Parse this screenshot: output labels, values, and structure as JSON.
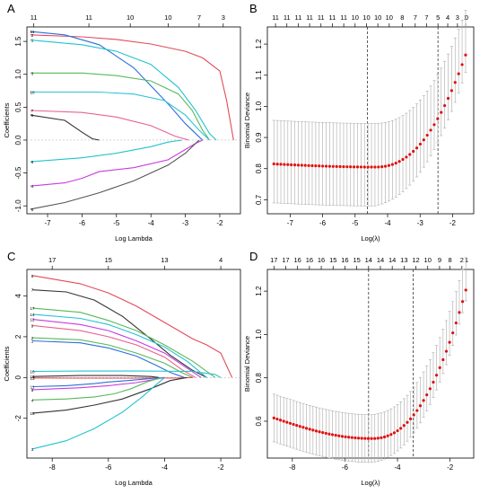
{
  "panels": [
    {
      "letter": "A",
      "type": "line",
      "xlabel": "Log Lambda",
      "ylabel": "Coefficients",
      "xlim": [
        -7.6,
        -1.4
      ],
      "ylim": [
        -1.12,
        1.72
      ],
      "xticks": [
        -7,
        -6,
        -5,
        -4,
        -3,
        -2
      ],
      "xtick_labels": [
        "-7",
        "-6",
        "-5",
        "-4",
        "-3",
        "-2"
      ],
      "yticks": [
        -1.0,
        -0.5,
        0.0,
        0.5,
        1.0,
        1.5
      ],
      "ytick_labels": [
        "-1.0",
        "-0.5",
        "0.0",
        "0.5",
        "1.0",
        "1.5"
      ],
      "top_ticks": [
        -7.4,
        -5.8,
        -4.6,
        -3.5,
        -2.6,
        -1.9
      ],
      "top_labels": [
        "11",
        "11",
        "10",
        "10",
        "7",
        "3"
      ],
      "series": [
        {
          "color": "#e34a5a",
          "x": [
            -7.5,
            -6,
            -5,
            -4,
            -3,
            -2.5,
            -2,
            -1.8,
            -1.6
          ],
          "y": [
            1.6,
            1.57,
            1.53,
            1.46,
            1.35,
            1.25,
            1.05,
            0.6,
            0
          ],
          "label": "2"
        },
        {
          "color": "#2a6fd6",
          "x": [
            -7.5,
            -6.5,
            -5.5,
            -4.5,
            -3.5,
            -3,
            -2.6,
            -2.5
          ],
          "y": [
            1.65,
            1.6,
            1.45,
            1.1,
            0.55,
            0.25,
            0.05,
            0
          ],
          "label": "11"
        },
        {
          "color": "#22c3cf",
          "x": [
            -7.5,
            -6,
            -5,
            -4,
            -3.2,
            -2.7,
            -2.3,
            -2.1
          ],
          "y": [
            1.52,
            1.45,
            1.35,
            1.15,
            0.8,
            0.45,
            0.1,
            0
          ],
          "label": "1"
        },
        {
          "color": "#58b85a",
          "x": [
            -7.5,
            -6,
            -5,
            -4,
            -3.2,
            -2.8,
            -2.5,
            -2.3
          ],
          "y": [
            1.02,
            1.02,
            0.98,
            0.9,
            0.7,
            0.45,
            0.15,
            0
          ],
          "label": "3"
        },
        {
          "color": "#30c5d4",
          "x": [
            -7.5,
            -5.5,
            -4.5,
            -3.6,
            -3,
            -2.6,
            -2.3
          ],
          "y": [
            0.73,
            0.73,
            0.7,
            0.6,
            0.38,
            0.15,
            0
          ],
          "label": "10"
        },
        {
          "color": "#e96090",
          "x": [
            -7.5,
            -6,
            -5,
            -4,
            -3.3,
            -2.9
          ],
          "y": [
            0.45,
            0.42,
            0.35,
            0.22,
            0.06,
            0
          ],
          "label": "7"
        },
        {
          "color": "#333333",
          "x": [
            -7.5,
            -6.5,
            -6,
            -5.7,
            -5.5
          ],
          "y": [
            0.38,
            0.3,
            0.12,
            0.02,
            0
          ],
          "label": "5"
        },
        {
          "color": "#c83be0",
          "x": [
            -7.5,
            -6.5,
            -6,
            -5.5,
            -4.5,
            -3.5,
            -2.7,
            -2.5
          ],
          "y": [
            -0.7,
            -0.65,
            -0.58,
            -0.48,
            -0.42,
            -0.3,
            -0.05,
            0
          ],
          "label": "4"
        },
        {
          "color": "#22c3cf",
          "x": [
            -7.5,
            -6,
            -5,
            -4,
            -3.5,
            -3.1
          ],
          "y": [
            -0.33,
            -0.27,
            -0.2,
            -0.1,
            -0.03,
            0
          ],
          "label": "8"
        },
        {
          "color": "#555555",
          "x": [
            -7.5,
            -6.5,
            -5.5,
            -4.5,
            -3.5,
            -3,
            -2.6
          ],
          "y": [
            -1.05,
            -0.95,
            -0.8,
            -0.62,
            -0.38,
            -0.2,
            0
          ],
          "label": "6"
        }
      ]
    },
    {
      "letter": "B",
      "type": "scatter",
      "xlabel": "Log(λ)",
      "ylabel": "Binomial Deviance",
      "xlim": [
        -7.7,
        -1.35
      ],
      "ylim": [
        0.655,
        1.255
      ],
      "xticks": [
        -7,
        -6,
        -5,
        -4,
        -3,
        -2
      ],
      "xtick_labels": [
        "-7",
        "-6",
        "-5",
        "-4",
        "-3",
        "-2"
      ],
      "yticks": [
        0.7,
        0.8,
        0.9,
        1.0,
        1.1,
        1.2
      ],
      "ytick_labels": [
        "0.7",
        "0.8",
        "0.9",
        "1.0",
        "1.1",
        "1.2"
      ],
      "top_ticks": [
        -7.45,
        -7.1,
        -6.75,
        -6.4,
        -6.05,
        -5.7,
        -5.35,
        -5.0,
        -4.65,
        -4.3,
        -3.95,
        -3.55,
        -3.15,
        -2.8,
        -2.45,
        -2.15,
        -1.85,
        -1.6
      ],
      "top_labels": [
        "11",
        "11",
        "11",
        "11",
        "11",
        "11",
        "11",
        "10",
        "10",
        "10",
        "10",
        "8",
        "7",
        "7",
        "5",
        "4",
        "3",
        "1"
      ],
      "extra_top_label": "0",
      "vlines": [
        -4.62,
        -2.45
      ],
      "n_points": 56,
      "x_start": -7.5,
      "x_end": -1.6,
      "base": 0.815,
      "min": 0.805,
      "min_at": -4.4,
      "rise_to": 1.165,
      "band_lo": 0.69,
      "band_hi": 0.955,
      "err_growth": 0.08
    },
    {
      "letter": "C",
      "type": "line",
      "xlabel": "Log Lambda",
      "ylabel": "Coefficients",
      "xlim": [
        -8.9,
        -1.3
      ],
      "ylim": [
        -3.95,
        5.3
      ],
      "xticks": [
        -8,
        -6,
        -4,
        -2
      ],
      "xtick_labels": [
        "-8",
        "-6",
        "-4",
        "-2"
      ],
      "yticks": [
        -2,
        0,
        2,
        4
      ],
      "ytick_labels": [
        "-2",
        "0",
        "2",
        "4"
      ],
      "top_ticks": [
        -8,
        -6,
        -4,
        -2
      ],
      "top_labels": [
        "17",
        "15",
        "13",
        "4"
      ],
      "series": [
        {
          "color": "#e34a5a",
          "x": [
            -8.7,
            -7,
            -6,
            -5,
            -4,
            -3,
            -2.5,
            -2,
            -1.6
          ],
          "y": [
            5.0,
            4.6,
            4.15,
            3.5,
            2.7,
            1.9,
            1.6,
            1.2,
            0
          ],
          "label": "8"
        },
        {
          "color": "#333333",
          "x": [
            -8.7,
            -7.5,
            -6.5,
            -5.5,
            -4.5,
            -3.8,
            -3,
            -2.5
          ],
          "y": [
            4.3,
            4.2,
            3.8,
            3.0,
            1.9,
            1.1,
            0.35,
            0
          ],
          "label": "7"
        },
        {
          "color": "#58b85a",
          "x": [
            -8.7,
            -7,
            -6,
            -5,
            -4,
            -3,
            -2.2
          ],
          "y": [
            3.4,
            3.2,
            2.8,
            2.3,
            1.6,
            0.8,
            0
          ],
          "label": "17"
        },
        {
          "color": "#22c3cf",
          "x": [
            -8.7,
            -7,
            -6,
            -5,
            -4,
            -3.2,
            -2.5
          ],
          "y": [
            3.1,
            2.9,
            2.6,
            2.1,
            1.5,
            0.8,
            0
          ],
          "label": "14"
        },
        {
          "color": "#c83be0",
          "x": [
            -8.7,
            -7,
            -6,
            -5,
            -4,
            -3.3,
            -2.7
          ],
          "y": [
            2.85,
            2.6,
            2.3,
            1.8,
            1.2,
            0.55,
            0
          ],
          "label": "12"
        },
        {
          "color": "#e96090",
          "x": [
            -8.7,
            -7,
            -6,
            -5,
            -4,
            -3.4,
            -2.9
          ],
          "y": [
            2.55,
            2.3,
            2.0,
            1.6,
            1.0,
            0.4,
            0
          ],
          "label": "9"
        },
        {
          "color": "#58b85a",
          "x": [
            -8.7,
            -7,
            -6,
            -5,
            -4,
            -3.4,
            -3
          ],
          "y": [
            1.95,
            1.85,
            1.6,
            1.2,
            0.7,
            0.25,
            0
          ],
          "label": "2"
        },
        {
          "color": "#2a6fd6",
          "x": [
            -8.7,
            -7,
            -6,
            -5,
            -4.3,
            -3.8,
            -3.3
          ],
          "y": [
            1.8,
            1.7,
            1.45,
            1.05,
            0.6,
            0.25,
            0
          ],
          "label": "1"
        },
        {
          "color": "#22c3cf",
          "x": [
            -8.7,
            -7,
            -5,
            -3,
            -2.2,
            -2
          ],
          "y": [
            0.3,
            0.32,
            0.32,
            0.3,
            0.15,
            0
          ],
          "label": "10"
        },
        {
          "color": "#e34a5a",
          "x": [
            -8.7,
            -7,
            -5,
            -3.5,
            -3
          ],
          "y": [
            -0.02,
            -0.03,
            -0.03,
            -0.02,
            0
          ],
          "label": "13"
        },
        {
          "color": "#333333",
          "x": [
            -8.7,
            -7,
            -5.5,
            -4.5,
            -4.2
          ],
          "y": [
            0.05,
            0.1,
            0.1,
            0.05,
            0
          ],
          "label": "16"
        },
        {
          "color": "#2a6fd6",
          "x": [
            -8.7,
            -7.5,
            -6.5,
            -6,
            -5.3,
            -4.5,
            -4
          ],
          "y": [
            -0.45,
            -0.4,
            -0.3,
            -0.22,
            -0.15,
            -0.05,
            0
          ],
          "label": "11"
        },
        {
          "color": "#c83be0",
          "x": [
            -8.7,
            -7,
            -6,
            -5,
            -4.3,
            -4
          ],
          "y": [
            -0.6,
            -0.5,
            -0.4,
            -0.25,
            -0.08,
            0
          ],
          "label": "6"
        },
        {
          "color": "#58b85a",
          "x": [
            -8.7,
            -7.5,
            -6.5,
            -5.8,
            -5.2,
            -4.6,
            -4.1
          ],
          "y": [
            -1.1,
            -1.05,
            -0.95,
            -0.8,
            -0.55,
            -0.2,
            0
          ],
          "label": "4"
        },
        {
          "color": "#333333",
          "x": [
            -8.7,
            -7.5,
            -6.5,
            -5.5,
            -4.5,
            -3.8,
            -3.2
          ],
          "y": [
            -1.75,
            -1.6,
            -1.35,
            -1.05,
            -0.55,
            -0.15,
            0
          ],
          "label": "15"
        },
        {
          "color": "#22c3cf",
          "x": [
            -8.7,
            -7.5,
            -6.5,
            -5.5,
            -4.8,
            -4.3,
            -4
          ],
          "y": [
            -3.5,
            -3.1,
            -2.5,
            -1.7,
            -0.95,
            -0.35,
            0
          ],
          "label": "3"
        }
      ]
    },
    {
      "letter": "D",
      "type": "scatter",
      "xlabel": "Log(λ)",
      "ylabel": "Binomial Deviance",
      "xlim": [
        -8.95,
        -1.1
      ],
      "ylim": [
        0.43,
        1.3
      ],
      "xticks": [
        -8,
        -6,
        -4,
        -2
      ],
      "xtick_labels": [
        "-8",
        "-6",
        "-4",
        "-2"
      ],
      "yticks": [
        0.6,
        0.8,
        1.0,
        1.2
      ],
      "ytick_labels": [
        "0.6",
        "0.8",
        "1.0",
        "1.2"
      ],
      "top_ticks": [
        -8.7,
        -8.25,
        -7.8,
        -7.35,
        -6.9,
        -6.45,
        -6.0,
        -5.55,
        -5.1,
        -4.65,
        -4.2,
        -3.75,
        -3.3,
        -2.85,
        -2.4,
        -2.0,
        -1.55
      ],
      "top_labels": [
        "17",
        "17",
        "16",
        "16",
        "16",
        "15",
        "16",
        "15",
        "14",
        "14",
        "14",
        "13",
        "12",
        "10",
        "9",
        "8",
        "2"
      ],
      "extra_top_label": "1",
      "vlines": [
        -5.1,
        -3.4
      ],
      "n_points": 60,
      "x_start": -8.7,
      "x_end": -1.4,
      "base": 0.615,
      "min": 0.52,
      "min_at": -5.0,
      "rise_to": 1.205,
      "band_lo": 0.505,
      "band_hi": 0.725,
      "err_growth": 0.1
    }
  ]
}
